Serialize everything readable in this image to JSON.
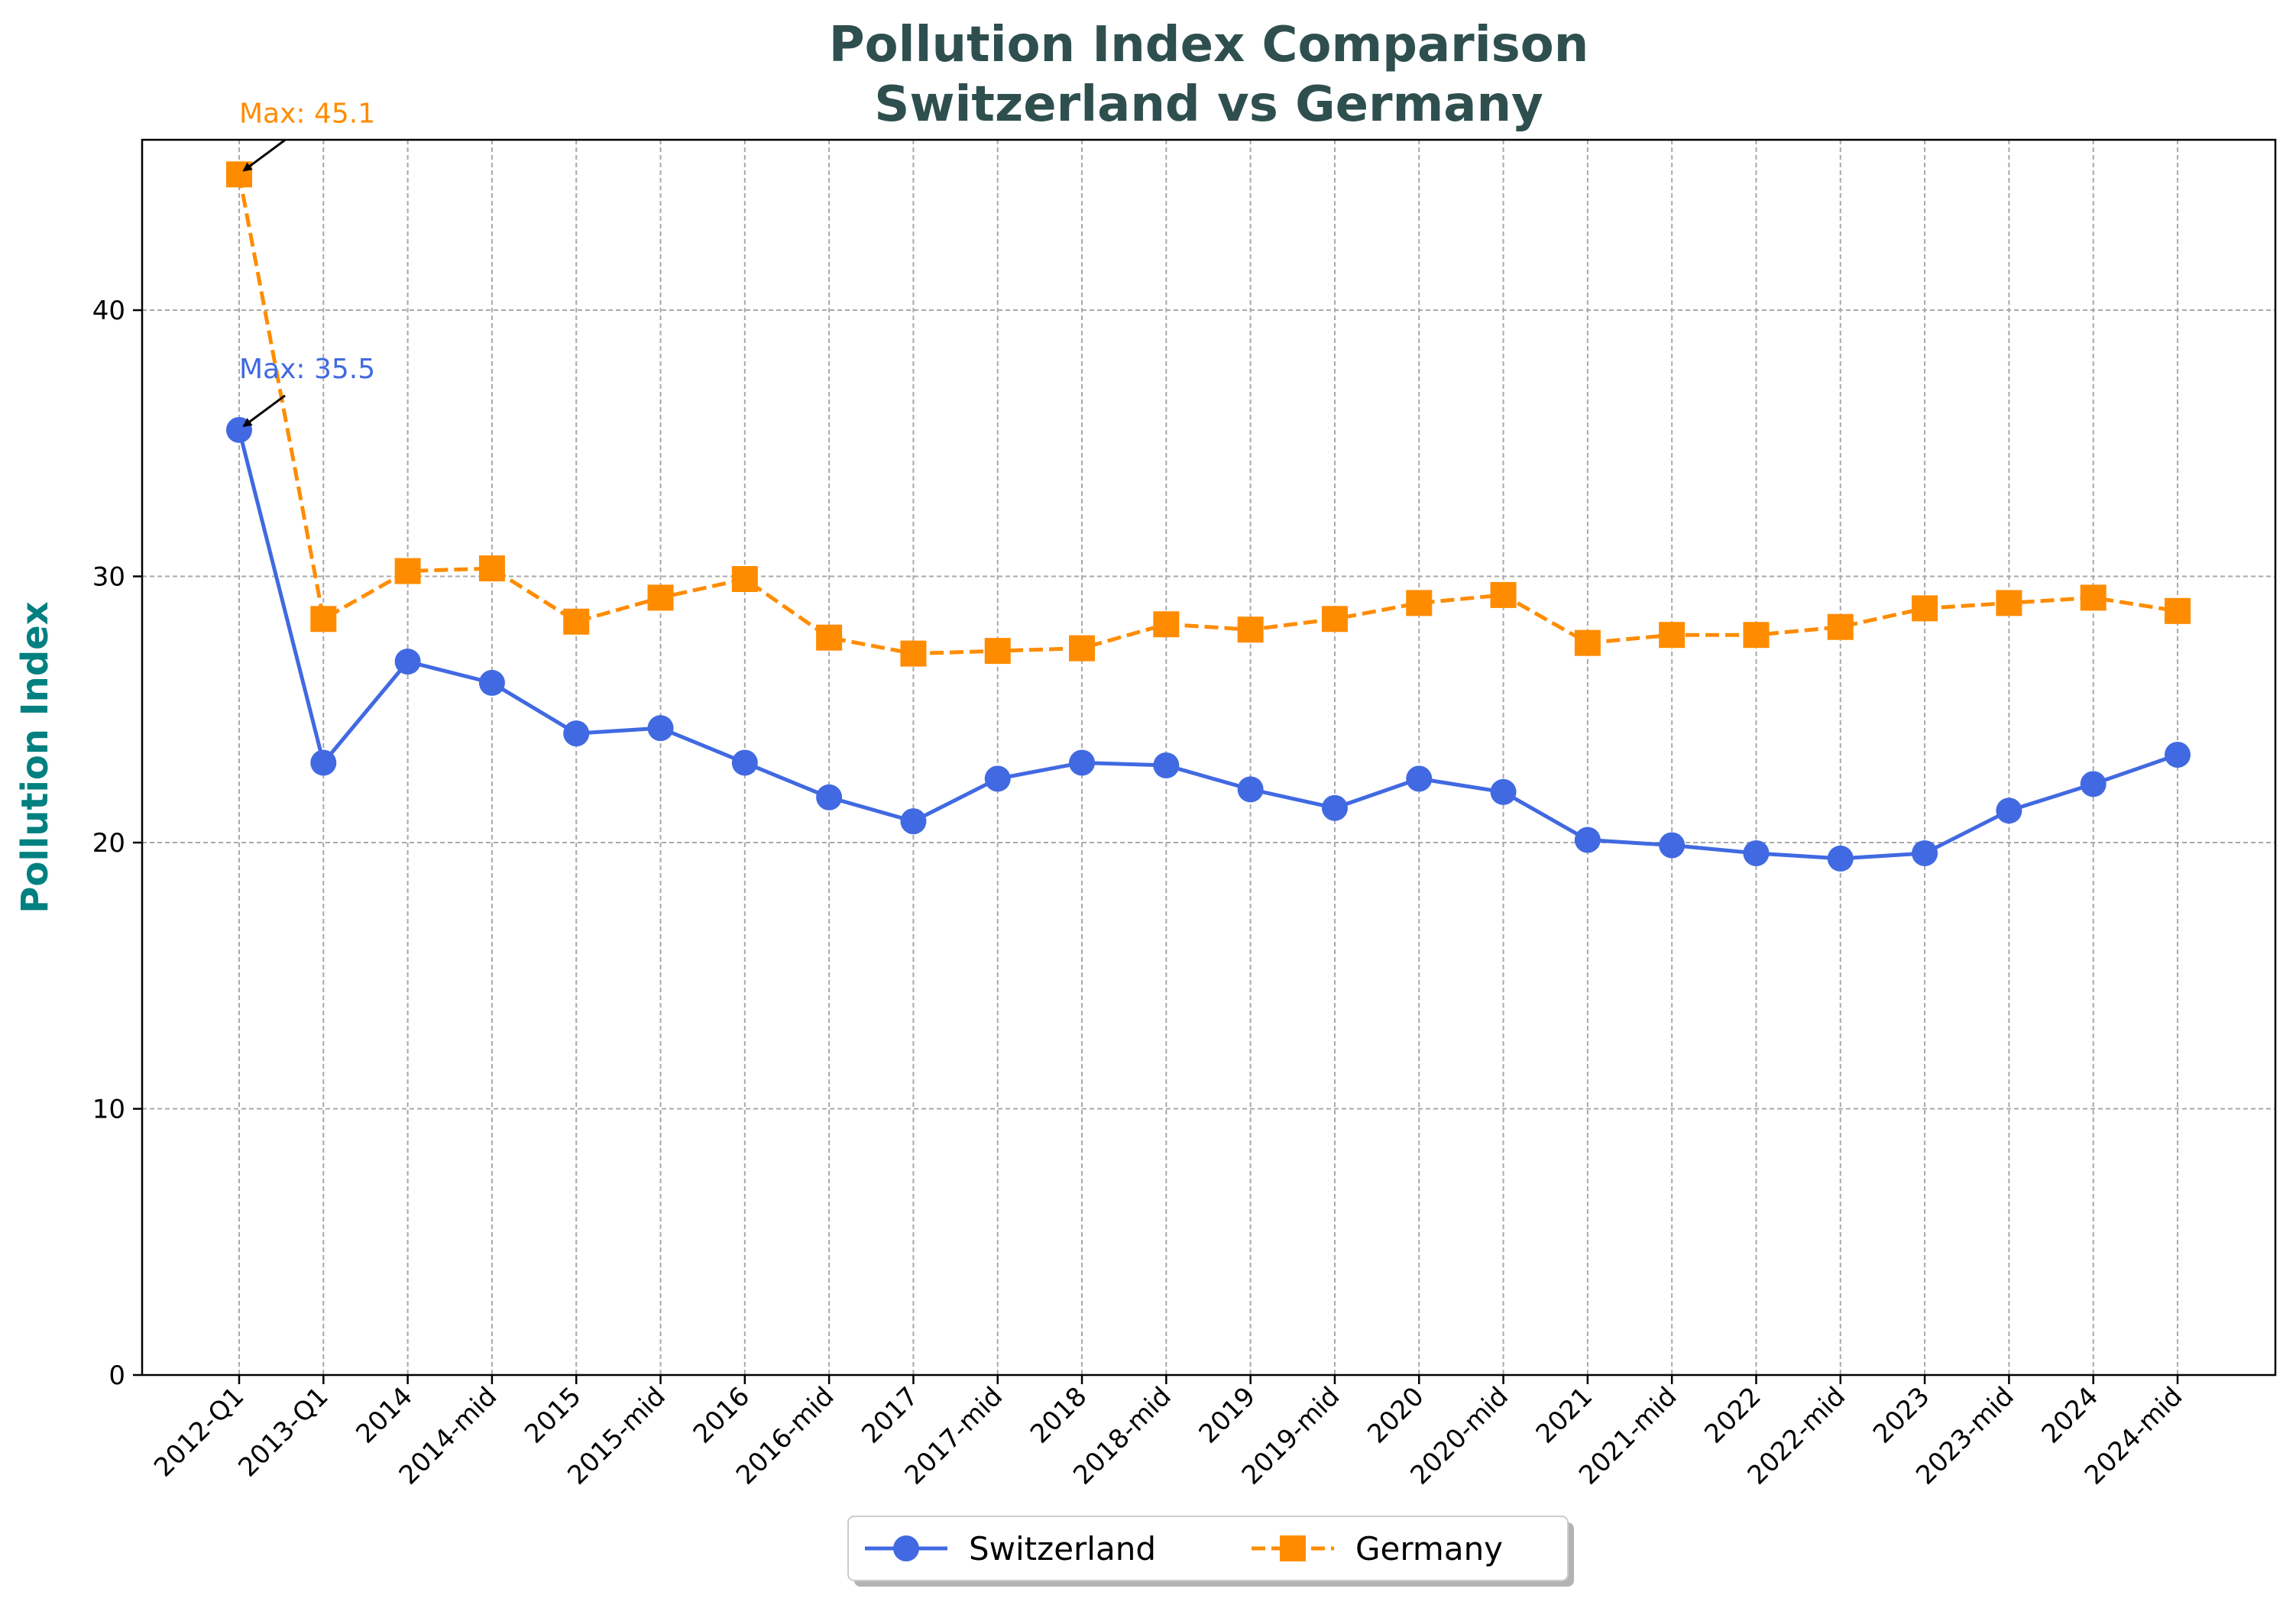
{
  "chart_data": {
    "type": "line",
    "title": "Pollution Index Comparison\nSwitzerland vs Germany",
    "title_color": "#2F4F4F",
    "xlabel": "",
    "ylabel": "Pollution Index",
    "ylabel_color": "#008080",
    "ylim": [
      0,
      46.4
    ],
    "yticks": [
      0,
      10,
      20,
      30,
      40
    ],
    "grid": true,
    "legend_position": "bottom-center",
    "categories": [
      "2012-Q1",
      "2013-Q1",
      "2014",
      "2014-mid",
      "2015",
      "2015-mid",
      "2016",
      "2016-mid",
      "2017",
      "2017-mid",
      "2018",
      "2018-mid",
      "2019",
      "2019-mid",
      "2020",
      "2020-mid",
      "2021",
      "2021-mid",
      "2022",
      "2022-mid",
      "2023",
      "2023-mid",
      "2024",
      "2024-mid"
    ],
    "series": [
      {
        "name": "Switzerland",
        "color": "#4169E1",
        "marker": "circle",
        "linestyle": "solid",
        "values": [
          35.5,
          23.0,
          26.8,
          26.0,
          24.1,
          24.3,
          23.0,
          21.7,
          20.8,
          22.4,
          23.0,
          22.9,
          22.0,
          21.3,
          22.4,
          21.9,
          20.1,
          19.9,
          19.6,
          19.4,
          19.6,
          21.2,
          22.2,
          23.3
        ]
      },
      {
        "name": "Germany",
        "color": "#FF8C00",
        "marker": "square",
        "linestyle": "dashed",
        "values": [
          45.1,
          28.4,
          30.2,
          30.3,
          28.3,
          29.2,
          29.9,
          27.7,
          27.1,
          27.2,
          27.3,
          28.2,
          28.0,
          28.4,
          29.0,
          29.3,
          27.5,
          27.8,
          27.8,
          28.1,
          28.8,
          29.0,
          29.2,
          28.7
        ]
      }
    ],
    "annotations": [
      {
        "series": "Germany",
        "text": "Max: 45.1",
        "color": "#FF8C00"
      },
      {
        "series": "Switzerland",
        "text": "Max: 35.5",
        "color": "#4169E1"
      }
    ]
  }
}
